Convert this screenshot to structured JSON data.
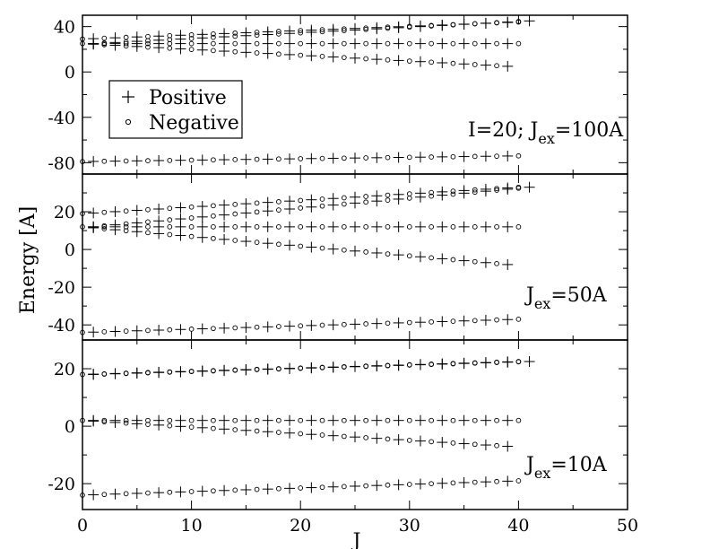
{
  "chart_data": {
    "type": "scatter",
    "xlabel": "J",
    "ylabel": "Energy [A]",
    "xlim": [
      0,
      50
    ],
    "xticks": [
      "0",
      "10",
      "20",
      "30",
      "40",
      "50"
    ],
    "legend": {
      "placement": "top-left",
      "entries": [
        {
          "label": "Positive",
          "marker": "plus"
        },
        {
          "label": "Negative",
          "marker": "circle"
        }
      ]
    },
    "panels": [
      {
        "annotation": {
          "prefix": "I=20; J",
          "sub": "ex",
          "suffix": "=100A"
        },
        "ylim": [
          -90,
          50
        ],
        "yticks": [
          "40",
          "0",
          "-40",
          "-80"
        ],
        "ytick_values": [
          40,
          0,
          -40,
          -80
        ],
        "curves": [
          {
            "start": 1,
            "end": 41,
            "v0": 25,
            "v1": 45
          },
          {
            "start": 0,
            "end": 40,
            "v0": 29,
            "v1": 44
          },
          {
            "start": 1,
            "end": 40,
            "v0": 25,
            "v1": 25
          },
          {
            "start": 0,
            "end": 39,
            "v0": 25,
            "v1": 5
          },
          {
            "start": 0,
            "end": 40,
            "v0": -79,
            "v1": -74
          }
        ]
      },
      {
        "annotation": {
          "prefix": "J",
          "sub": "ex",
          "suffix": "=50A"
        },
        "ylim": [
          -48,
          40
        ],
        "yticks": [
          "20",
          "0",
          "-20",
          "-40"
        ],
        "ytick_values": [
          20,
          0,
          -20,
          -40
        ],
        "curves": [
          {
            "start": 1,
            "end": 41,
            "v0": 12,
            "v1": 33
          },
          {
            "start": 0,
            "end": 40,
            "v0": 19,
            "v1": 33
          },
          {
            "start": 1,
            "end": 40,
            "v0": 12,
            "v1": 12
          },
          {
            "start": 0,
            "end": 39,
            "v0": 12,
            "v1": -8
          },
          {
            "start": 0,
            "end": 40,
            "v0": -44,
            "v1": -37
          }
        ]
      },
      {
        "annotation": {
          "prefix": "J",
          "sub": "ex",
          "suffix": "=10A"
        },
        "ylim": [
          -29,
          30
        ],
        "yticks": [
          "20",
          "0",
          "-20"
        ],
        "ytick_values": [
          20,
          0,
          -20
        ],
        "curves": [
          {
            "start": 1,
            "end": 41,
            "v0": 18,
            "v1": 22.5
          },
          {
            "start": 0,
            "end": 40,
            "v0": 18,
            "v1": 22.5
          },
          {
            "start": 1,
            "end": 40,
            "v0": 2,
            "v1": 2
          },
          {
            "start": 0,
            "end": 39,
            "v0": 2,
            "v1": -7
          },
          {
            "start": 0,
            "end": 40,
            "v0": -24,
            "v1": -19
          }
        ]
      }
    ]
  }
}
